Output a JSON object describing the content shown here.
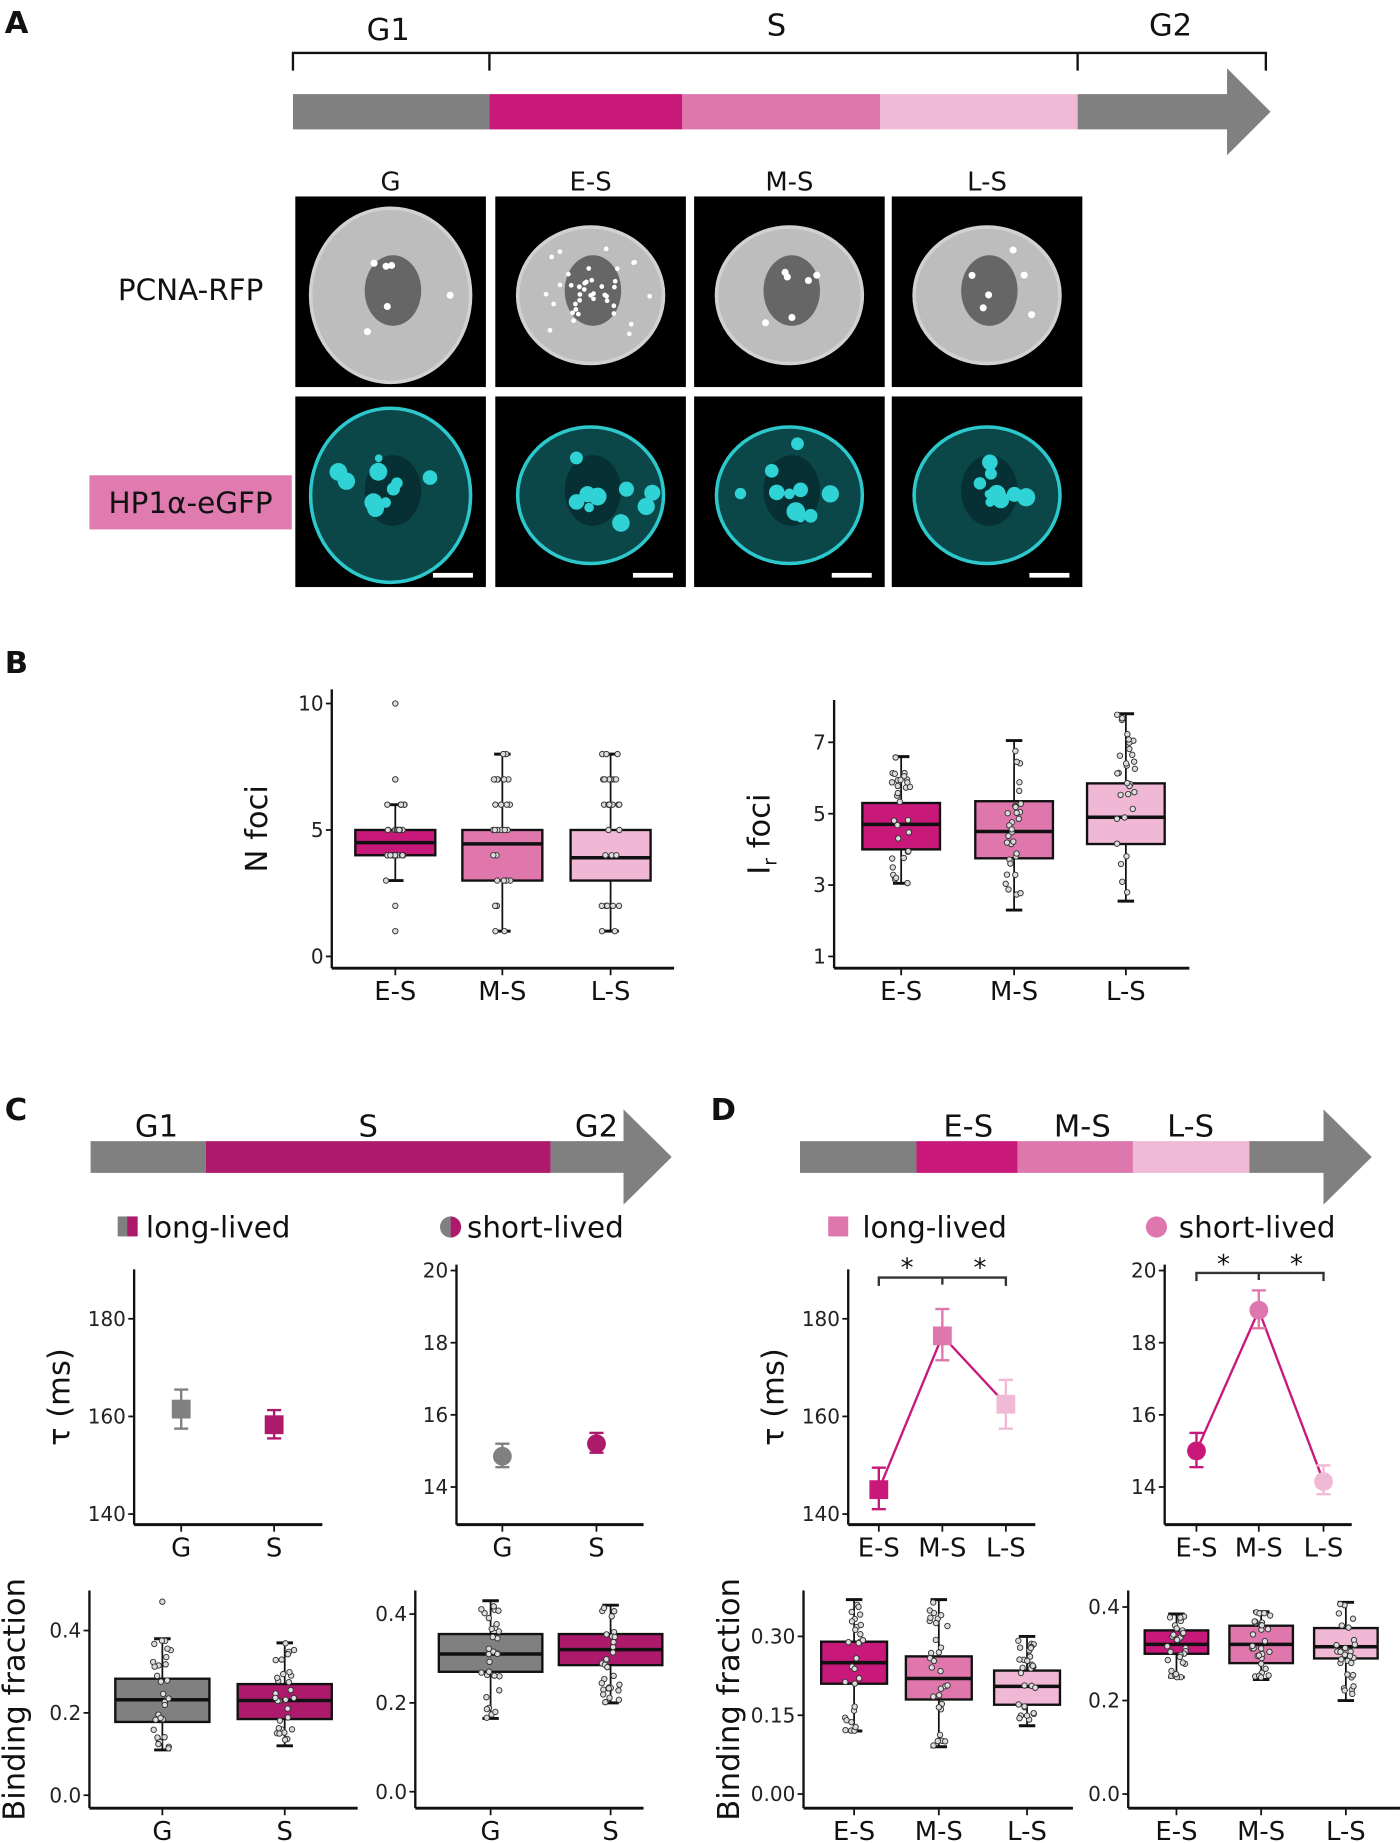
{
  "panels": {
    "a": "A",
    "b": "B",
    "c": "C",
    "d": "D"
  },
  "panel_a": {
    "phases": [
      "G1",
      "S",
      "G2"
    ],
    "columns": [
      "G",
      "E-S",
      "M-S",
      "L-S"
    ],
    "rows": [
      "PCNA-RFP",
      "HP1α-eGFP"
    ],
    "colors": {
      "gray": "#808080",
      "early": "#c8197b",
      "mid": "#de77ae",
      "late": "#f0b9d6",
      "label_bg": "#e07bb0",
      "cyan": "#2fd3d6"
    }
  },
  "panel_c": {
    "phases": [
      "G1",
      "S",
      "G2"
    ],
    "legend": {
      "long": "long-lived",
      "short": "short-lived"
    },
    "colors": {
      "gray": "#808080",
      "s": "#ad1a6c"
    }
  },
  "panel_d": {
    "phases": [
      "E-S",
      "M-S",
      "L-S"
    ],
    "legend": {
      "long": "long-lived",
      "short": "short-lived"
    },
    "significance": [
      "*",
      "*",
      "*",
      "*"
    ],
    "colors": {
      "gray": "#808080",
      "early": "#c8197b",
      "mid": "#de77ae",
      "late": "#f0b9d6"
    }
  },
  "chart_data": [
    {
      "id": "b_nfoci",
      "panel": "B",
      "type": "box",
      "ylabel": "N foci",
      "ylim": [
        0,
        10
      ],
      "yticks": [
        0,
        5,
        10
      ],
      "categories": [
        "E-S",
        "M-S",
        "L-S"
      ],
      "colors": [
        "#c8197b",
        "#df77ad",
        "#f0b8d5"
      ],
      "boxes": [
        {
          "median": 4.5,
          "q1": 4,
          "q3": 5,
          "whisker_low": 3,
          "whisker_high": 6,
          "outliers": [
            10,
            7,
            7,
            2,
            1
          ]
        },
        {
          "median": 4.45,
          "q1": 3,
          "q3": 5,
          "whisker_low": 1,
          "whisker_high": 8,
          "outliers": []
        },
        {
          "median": 3.9,
          "q1": 3,
          "q3": 5,
          "whisker_low": 1,
          "whisker_high": 8,
          "outliers": []
        }
      ]
    },
    {
      "id": "b_irfoci",
      "panel": "B",
      "type": "box",
      "ylabel": "I",
      "ylabel_sub": "r",
      "ylabel_rest": " foci",
      "ylim": [
        1,
        7.8
      ],
      "yticks": [
        1,
        3,
        5,
        7
      ],
      "categories": [
        "E-S",
        "M-S",
        "L-S"
      ],
      "colors": [
        "#c8197b",
        "#df77ad",
        "#f0b8d5"
      ],
      "boxes": [
        {
          "median": 4.7,
          "q1": 4.0,
          "q3": 5.3,
          "whisker_low": 3.05,
          "whisker_high": 6.6,
          "outliers": []
        },
        {
          "median": 4.5,
          "q1": 3.75,
          "q3": 5.35,
          "whisker_low": 2.3,
          "whisker_high": 7.05,
          "outliers": []
        },
        {
          "median": 4.9,
          "q1": 4.15,
          "q3": 5.85,
          "whisker_low": 2.55,
          "whisker_high": 7.8,
          "outliers": []
        }
      ]
    },
    {
      "id": "c_tau_long",
      "panel": "C",
      "type": "scatter",
      "marker": "square",
      "ylabel": "τ (ms)",
      "ylim": [
        140,
        190
      ],
      "yticks": [
        140,
        160,
        180
      ],
      "categories": [
        "G",
        "S"
      ],
      "colors": [
        "#808080",
        "#ad1a6c"
      ],
      "points": [
        {
          "y": 161.5,
          "err_low": 157.5,
          "err_high": 165.5
        },
        {
          "y": 158.3,
          "err_low": 155.5,
          "err_high": 161.3
        }
      ],
      "connected": false
    },
    {
      "id": "c_tau_short",
      "panel": "C",
      "type": "scatter",
      "marker": "circle",
      "ylabel": "",
      "ylim": [
        13.2,
        20
      ],
      "yticks": [
        14,
        16,
        18,
        20
      ],
      "categories": [
        "G",
        "S"
      ],
      "colors": [
        "#808080",
        "#ad1a6c"
      ],
      "points": [
        {
          "y": 14.85,
          "err_low": 14.55,
          "err_high": 15.2
        },
        {
          "y": 15.2,
          "err_low": 14.95,
          "err_high": 15.5
        }
      ],
      "connected": false
    },
    {
      "id": "d_tau_long",
      "panel": "D",
      "type": "line",
      "marker": "square",
      "ylabel": "τ (ms)",
      "ylim": [
        140,
        190
      ],
      "yticks": [
        140,
        160,
        180
      ],
      "categories": [
        "E-S",
        "M-S",
        "L-S"
      ],
      "colors": [
        "#c8197b",
        "#de77ae",
        "#f0b9d6"
      ],
      "line_color": "#c8197b",
      "points": [
        {
          "y": 145,
          "err_low": 141,
          "err_high": 149.5
        },
        {
          "y": 176.5,
          "err_low": 171.5,
          "err_high": 182
        },
        {
          "y": 162.5,
          "err_low": 157.5,
          "err_high": 167.5
        }
      ],
      "connected": true
    },
    {
      "id": "d_tau_short",
      "panel": "D",
      "type": "line",
      "marker": "circle",
      "ylabel": "",
      "ylim": [
        13.2,
        20
      ],
      "yticks": [
        14,
        16,
        18,
        20
      ],
      "categories": [
        "E-S",
        "M-S",
        "L-S"
      ],
      "colors": [
        "#c8197b",
        "#de77ae",
        "#f0b9d6"
      ],
      "line_color": "#c8197b",
      "points": [
        {
          "y": 15.0,
          "err_low": 14.55,
          "err_high": 15.5
        },
        {
          "y": 18.9,
          "err_low": 18.4,
          "err_high": 19.45
        },
        {
          "y": 14.15,
          "err_low": 13.8,
          "err_high": 14.6
        }
      ],
      "connected": true
    },
    {
      "id": "c_bf_long",
      "panel": "C",
      "type": "box",
      "ylabel": "Binding fraction",
      "ylim": [
        0,
        0.48
      ],
      "yticks": [
        0.0,
        0.2,
        0.4
      ],
      "tick_labels": [
        "0.0",
        "0.2",
        "0.4"
      ],
      "categories": [
        "G",
        "S"
      ],
      "colors": [
        "#808080",
        "#ad1a6c"
      ],
      "boxes": [
        {
          "median": 0.232,
          "q1": 0.178,
          "q3": 0.283,
          "whisker_low": 0.11,
          "whisker_high": 0.38,
          "outliers": [
            0.47
          ]
        },
        {
          "median": 0.23,
          "q1": 0.185,
          "q3": 0.27,
          "whisker_low": 0.12,
          "whisker_high": 0.37,
          "outliers": []
        }
      ]
    },
    {
      "id": "c_bf_short",
      "panel": "C",
      "type": "box",
      "ylabel": "",
      "ylim": [
        0,
        0.44
      ],
      "yticks": [
        0.0,
        0.2,
        0.4
      ],
      "tick_labels": [
        "0.0",
        "0.2",
        "0.4"
      ],
      "categories": [
        "G",
        "S"
      ],
      "colors": [
        "#808080",
        "#ad1a6c"
      ],
      "boxes": [
        {
          "median": 0.31,
          "q1": 0.27,
          "q3": 0.355,
          "whisker_low": 0.165,
          "whisker_high": 0.43,
          "outliers": []
        },
        {
          "median": 0.32,
          "q1": 0.285,
          "q3": 0.355,
          "whisker_low": 0.2,
          "whisker_high": 0.42,
          "outliers": []
        }
      ]
    },
    {
      "id": "d_bf_long",
      "panel": "D",
      "type": "box",
      "ylabel": "Binding fraction",
      "ylim": [
        0,
        0.37
      ],
      "yticks": [
        0.0,
        0.15,
        0.3
      ],
      "tick_labels": [
        "0.00",
        "0.15",
        "0.30"
      ],
      "categories": [
        "E-S",
        "M-S",
        "L-S"
      ],
      "colors": [
        "#c8197b",
        "#df77ad",
        "#f0b8d5"
      ],
      "boxes": [
        {
          "median": 0.25,
          "q1": 0.21,
          "q3": 0.29,
          "whisker_low": 0.12,
          "whisker_high": 0.37,
          "outliers": []
        },
        {
          "median": 0.22,
          "q1": 0.18,
          "q3": 0.262,
          "whisker_low": 0.09,
          "whisker_high": 0.37,
          "outliers": []
        },
        {
          "median": 0.205,
          "q1": 0.17,
          "q3": 0.235,
          "whisker_low": 0.13,
          "whisker_high": 0.3,
          "outliers": []
        }
      ]
    },
    {
      "id": "d_bf_short",
      "panel": "D",
      "type": "box",
      "ylabel": "",
      "ylim": [
        0,
        0.42
      ],
      "yticks": [
        0.0,
        0.2,
        0.4
      ],
      "tick_labels": [
        "0.0",
        "0.2",
        "0.4"
      ],
      "categories": [
        "E-S",
        "M-S",
        "L-S"
      ],
      "colors": [
        "#c8197b",
        "#df77ad",
        "#f0b8d5"
      ],
      "boxes": [
        {
          "median": 0.32,
          "q1": 0.3,
          "q3": 0.35,
          "whisker_low": 0.25,
          "whisker_high": 0.385,
          "outliers": []
        },
        {
          "median": 0.32,
          "q1": 0.28,
          "q3": 0.36,
          "whisker_low": 0.245,
          "whisker_high": 0.39,
          "outliers": []
        },
        {
          "median": 0.315,
          "q1": 0.29,
          "q3": 0.355,
          "whisker_low": 0.2,
          "whisker_high": 0.41,
          "outliers": []
        }
      ]
    }
  ]
}
